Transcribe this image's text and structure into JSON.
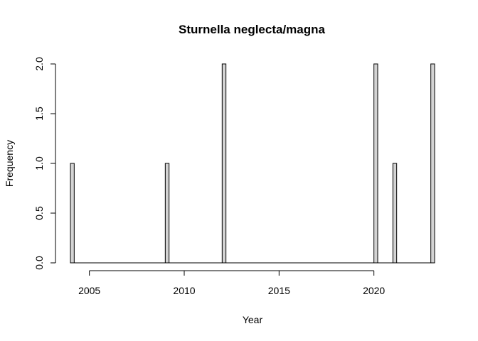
{
  "chart_data": {
    "type": "bar",
    "title": "Sturnella neglecta/magna",
    "xlabel": "Year",
    "ylabel": "Frequency",
    "x_range": [
      2004,
      2023
    ],
    "ylim": [
      0,
      2
    ],
    "bin_width": 0.2,
    "x_ticks": [
      "2005",
      "2010",
      "2015",
      "2020"
    ],
    "y_ticks": [
      "0.0",
      "0.5",
      "1.0",
      "1.5",
      "2.0"
    ],
    "bars": [
      {
        "year": 2004,
        "count": 1
      },
      {
        "year": 2009,
        "count": 1
      },
      {
        "year": 2012,
        "count": 2
      },
      {
        "year": 2020,
        "count": 2
      },
      {
        "year": 2021,
        "count": 1
      },
      {
        "year": 2023,
        "count": 2
      }
    ],
    "bar_fill": "#d3d3d3",
    "grid": false,
    "legend": "none"
  }
}
